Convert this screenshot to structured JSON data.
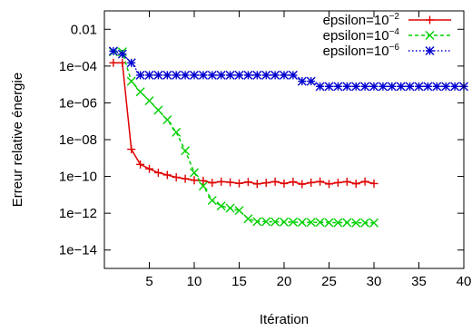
{
  "chart_data": {
    "type": "line",
    "title": "",
    "xlabel": "Itération",
    "ylabel": "Erreur relative énergie",
    "xlim": [
      0,
      40
    ],
    "ylim": [
      1e-15,
      0.1
    ],
    "yscale": "log",
    "grid": false,
    "legend_position": "top-right",
    "x_ticks": [
      5,
      10,
      15,
      20,
      25,
      30,
      35,
      40
    ],
    "y_ticks": [
      {
        "value": 0.01,
        "label": "0.01"
      },
      {
        "value": 0.0001,
        "label": "1e−04"
      },
      {
        "value": 1e-06,
        "label": "1e−06"
      },
      {
        "value": 1e-08,
        "label": "1e−08"
      },
      {
        "value": 1e-10,
        "label": "1e−10"
      },
      {
        "value": 1e-12,
        "label": "1e−12"
      },
      {
        "value": 1e-14,
        "label": "1e−14"
      }
    ],
    "series": [
      {
        "name": "epsilon=10",
        "name_exp": "−2",
        "color": "#e00000",
        "marker": "plus",
        "dash": "",
        "x": [
          1,
          2,
          3,
          4,
          5,
          6,
          7,
          8,
          9,
          10,
          11,
          12,
          13,
          14,
          15,
          16,
          17,
          18,
          19,
          20,
          21,
          22,
          23,
          24,
          25,
          26,
          27,
          28,
          29,
          30
        ],
        "y": [
          0.00015,
          0.00015,
          3e-09,
          4.5e-10,
          2.6e-10,
          1.6e-10,
          1.2e-10,
          9e-11,
          7.5e-11,
          6.2e-11,
          5.8e-11,
          4.5e-11,
          5.2e-11,
          4.8e-11,
          4.2e-11,
          5e-11,
          3.9e-11,
          4.5e-11,
          5.2e-11,
          4.1e-11,
          5.1e-11,
          3.8e-11,
          4.6e-11,
          5.3e-11,
          3.9e-11,
          4.6e-11,
          5.2e-11,
          4e-11,
          5.3e-11,
          4.1e-11
        ]
      },
      {
        "name": "epsilon=10",
        "name_exp": "−4",
        "color": "#00d000",
        "marker": "cross",
        "dash": "4,3",
        "x": [
          1,
          2,
          3,
          4,
          5,
          6,
          7,
          8,
          9,
          10,
          11,
          12,
          13,
          14,
          15,
          16,
          17,
          18,
          19,
          20,
          21,
          22,
          23,
          24,
          25,
          26,
          27,
          28,
          29,
          30
        ],
        "y": [
          0.0006,
          0.0006,
          1.5e-05,
          4e-06,
          1.3e-06,
          4e-07,
          1.2e-07,
          2.5e-08,
          2.5e-09,
          1.6e-10,
          3e-11,
          5e-12,
          2.5e-12,
          1.9e-12,
          1.4e-12,
          5e-13,
          3.5e-13,
          3.5e-13,
          3.4e-13,
          3.3e-13,
          3.3e-13,
          3.2e-13,
          3.2e-13,
          3.2e-13,
          3.1e-13,
          3.1e-13,
          3.1e-13,
          3e-13,
          3e-13,
          3e-13
        ]
      },
      {
        "name": "epsilon=10",
        "name_exp": "−6",
        "color": "#0000d0",
        "marker": "star",
        "dash": "1.5,2.5",
        "x": [
          1,
          2,
          3,
          4,
          5,
          6,
          7,
          8,
          9,
          10,
          11,
          12,
          13,
          14,
          15,
          16,
          17,
          18,
          19,
          20,
          21,
          22,
          23,
          24,
          25,
          26,
          27,
          28,
          29,
          30,
          31,
          32,
          33,
          34,
          35,
          36,
          37,
          38,
          39,
          40
        ],
        "y": [
          0.00065,
          0.00045,
          0.00015,
          3.2e-05,
          3.2e-05,
          3.2e-05,
          3.2e-05,
          3.2e-05,
          3.2e-05,
          3.2e-05,
          3.2e-05,
          3.2e-05,
          3.2e-05,
          3.2e-05,
          3.2e-05,
          3.2e-05,
          3.2e-05,
          3.2e-05,
          3.2e-05,
          3.2e-05,
          3.2e-05,
          1.5e-05,
          1.5e-05,
          7.8e-06,
          7.8e-06,
          7.8e-06,
          7.8e-06,
          7.8e-06,
          7.8e-06,
          7.8e-06,
          7.8e-06,
          7.8e-06,
          7.8e-06,
          7.8e-06,
          7.8e-06,
          7.8e-06,
          7.8e-06,
          7.8e-06,
          7.8e-06,
          7.8e-06
        ]
      }
    ]
  }
}
